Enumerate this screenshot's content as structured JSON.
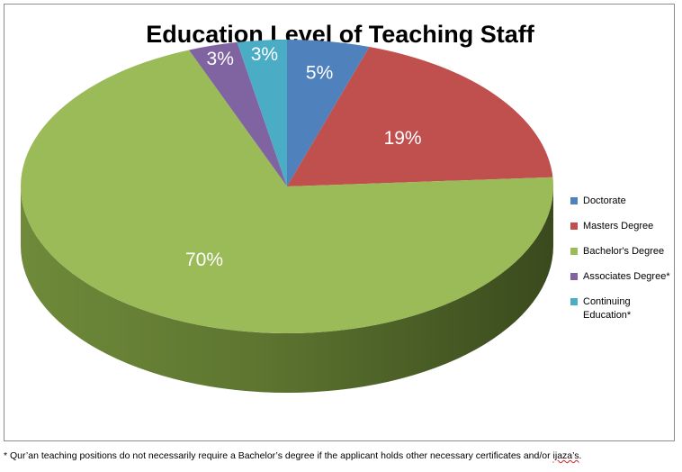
{
  "chart_data": {
    "type": "pie",
    "title": "Education Level of Teaching Staff",
    "categories": [
      "Doctorate",
      "Masters Degree",
      "Bachelor's Degree",
      "Associates Degree*",
      "Continuing Education*"
    ],
    "values": [
      5,
      19,
      70,
      3,
      3
    ],
    "labels": [
      "5%",
      "19%",
      "70%",
      "3%",
      "3%"
    ],
    "colors": [
      "#4f81bd",
      "#c0504d",
      "#9bbb59",
      "#8064a2",
      "#4bacc6"
    ],
    "legend_position": "right"
  },
  "footnote": {
    "star": "*",
    "text": "Qur’an teaching positions do not necessarily require a Bachelor’s degree if the applicant holds other necessary certificates and/or ",
    "last_word": "ijaza’s",
    "end": "."
  }
}
